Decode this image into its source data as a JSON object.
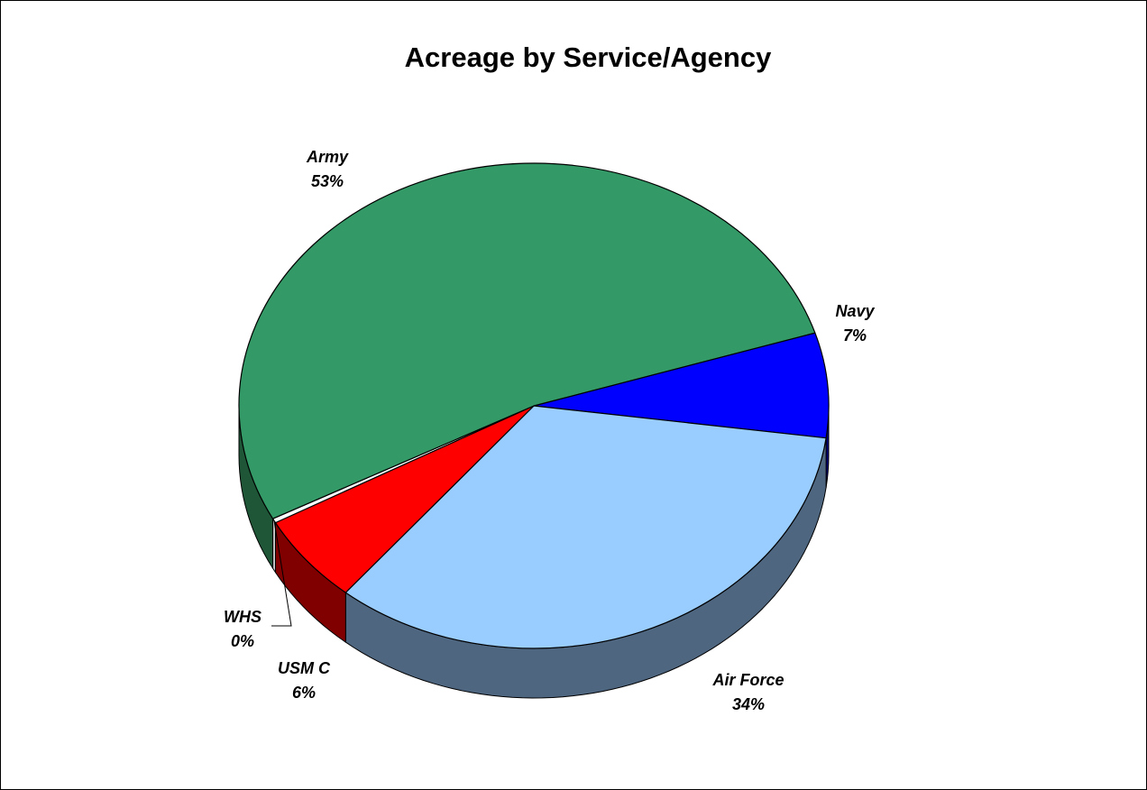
{
  "chart_data": {
    "type": "pie",
    "title": "Acreage by Service/Agency",
    "three_d": true,
    "slices": [
      {
        "name": "Navy",
        "label": "Navy",
        "pct_label": "7%",
        "value": 7,
        "color": "#0000FF",
        "side_color": "#00007A"
      },
      {
        "name": "Air Force",
        "label": "Air Force",
        "pct_label": "34%",
        "value": 34,
        "color": "#99CCFF",
        "side_color": "#4E6680"
      },
      {
        "name": "USMC",
        "label": "USM C",
        "pct_label": "6%",
        "value": 6,
        "color": "#FF0000",
        "side_color": "#800000"
      },
      {
        "name": "WHS",
        "label": "WHS",
        "pct_label": "0%",
        "value": 0.3,
        "color": "#FFFFFF",
        "side_color": "#CCCCCC"
      },
      {
        "name": "Army",
        "label": "Army",
        "pct_label": "53%",
        "value": 53,
        "color": "#339966",
        "side_color": "#1E5637"
      }
    ]
  }
}
